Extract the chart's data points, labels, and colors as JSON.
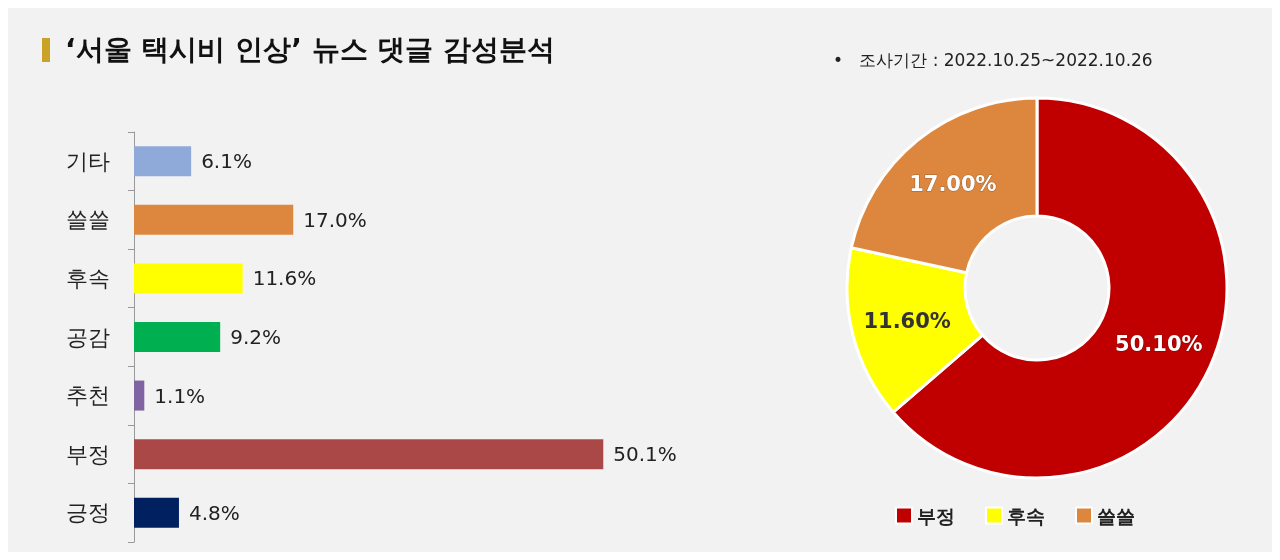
{
  "chart_data": [
    {
      "type": "bar",
      "title": "‘서울 택시비 인상’ 뉴스 댓글 감성분석",
      "orientation": "horizontal",
      "categories": [
        "기타",
        "쓸쓸",
        "후속",
        "공감",
        "추천",
        "부정",
        "긍정"
      ],
      "values": [
        6.1,
        17.0,
        11.6,
        9.2,
        1.1,
        50.1,
        4.8
      ],
      "value_labels": [
        "6.1%",
        "17.0%",
        "11.6%",
        "9.2%",
        "1.1%",
        "50.1%",
        "4.8%"
      ],
      "colors": [
        "#8faad8",
        "#dd873e",
        "#ffff00",
        "#00b050",
        "#8064a2",
        "#aa4848",
        "#002060"
      ],
      "grid": false,
      "legend": false
    },
    {
      "type": "donut",
      "subtitle": "•   조사기간 : 2022.10.25~2022.10.26",
      "categories": [
        "부정",
        "후속",
        "쓸쓸"
      ],
      "values": [
        50.1,
        11.6,
        17.0
      ],
      "value_labels": [
        "50.10%",
        "11.60%",
        "17.00%"
      ],
      "colors": [
        "#c00000",
        "#ffff00",
        "#dd873e"
      ],
      "legend": "bottom"
    }
  ]
}
